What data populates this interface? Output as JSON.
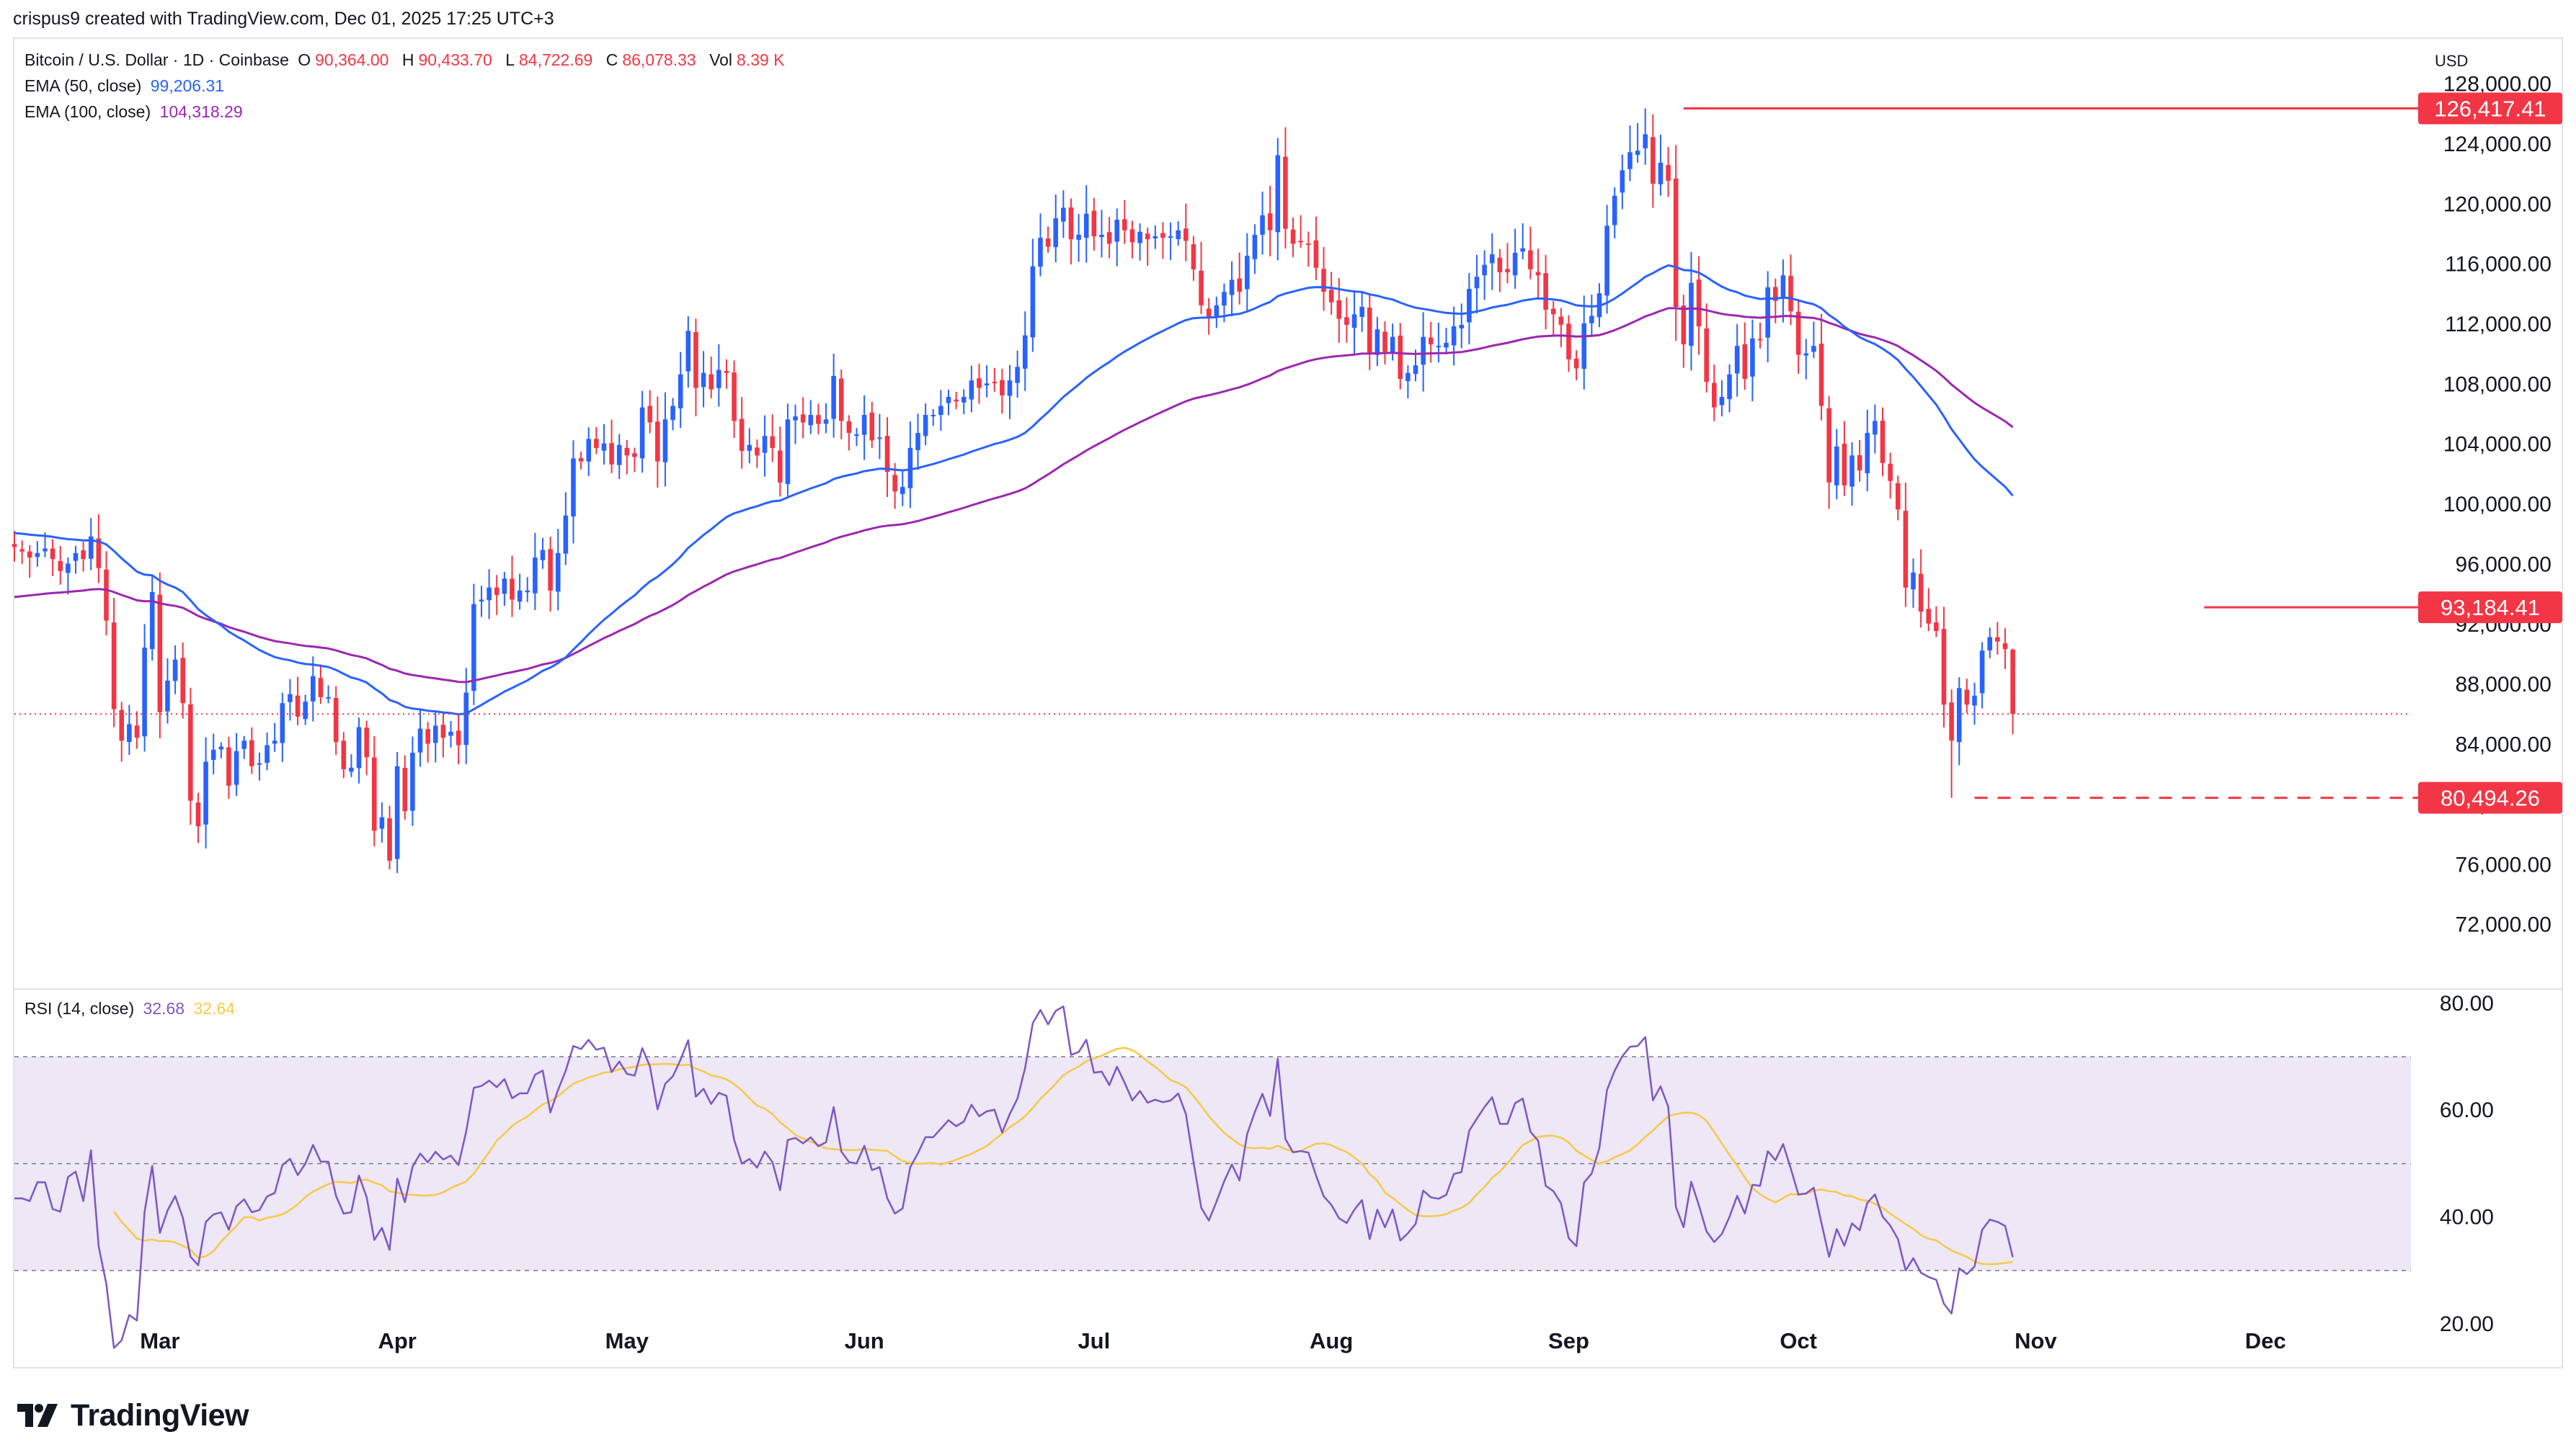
{
  "header": {
    "credit": "crispus9 created with TradingView.com, Dec 01, 2025 17:25 UTC+3"
  },
  "legend": {
    "symbol": "Bitcoin / U.S. Dollar · 1D · Coinbase",
    "open_label": "O",
    "open": "90,364.00",
    "high_label": "H",
    "high": "90,433.70",
    "low_label": "L",
    "low": "84,722.69",
    "close_label": "C",
    "close": "86,078.33",
    "volume_label": "Vol",
    "volume": "8.39 K",
    "ema50_label": "EMA (50, close)",
    "ema50_value": "99,206.31",
    "ema100_label": "EMA (100, close)",
    "ema100_value": "104,318.29",
    "rsi_label": "RSI (14, close)",
    "rsi_value": "32.68",
    "rsi_ma_value": "32.64"
  },
  "currency": "USD",
  "price_tags": [
    "126,417.41",
    "93,184.41",
    "80,494.26"
  ],
  "brand": "TradingView",
  "colors": {
    "bull": "#2962ff",
    "bear": "#f23645",
    "ema50": "#2962ff",
    "ema100": "#9c27b0",
    "rsi": "#7e57c2",
    "rsi_ma": "#f7c948",
    "rsi_band": "#ede7f6",
    "marker": "#f23645"
  },
  "chart_data": [
    {
      "type": "candlestick",
      "title": "Bitcoin / U.S. Dollar · 1D · Coinbase",
      "x_ticks": [
        "Mar",
        "Apr",
        "May",
        "Jun",
        "Jul",
        "Aug",
        "Sep",
        "Oct",
        "Nov",
        "Dec"
      ],
      "y_ticks": [
        72000,
        76000,
        80000,
        84000,
        88000,
        92000,
        96000,
        100000,
        104000,
        108000,
        112000,
        116000,
        120000,
        124000,
        128000
      ],
      "ylim": [
        68000,
        131000
      ],
      "xlim": [
        "2025-02-10",
        "2025-12-20"
      ],
      "close_series": {
        "name": "close",
        "start_date": "2025-02-10",
        "values": [
          97200,
          96900,
          96500,
          96800,
          97100,
          96400,
          95600,
          96100,
          96800,
          96400,
          97900,
          95800,
          92300,
          86400,
          84300,
          85400,
          84500,
          90500,
          94200,
          86200,
          88300,
          89700,
          86800,
          80300,
          78600,
          82900,
          83700,
          83900,
          81300,
          83600,
          84300,
          82600,
          82800,
          84000,
          84300,
          86800,
          87400,
          85900,
          86900,
          88600,
          87200,
          87200,
          84200,
          82400,
          82500,
          85200,
          83200,
          78300,
          79200,
          76300,
          82600,
          79600,
          83500,
          85100,
          84100,
          85300,
          84500,
          84900,
          84000,
          87500,
          93400,
          93700,
          94500,
          94000,
          95100,
          93700,
          94300,
          94300,
          96500,
          97000,
          94300,
          96800,
          99300,
          103100,
          102900,
          104400,
          103800,
          104100,
          102700,
          104000,
          103300,
          103200,
          106500,
          105500,
          102900,
          105700,
          106600,
          108700,
          111600,
          107800,
          108800,
          107700,
          109000,
          108800,
          105600,
          103600,
          104000,
          103300,
          104600,
          103800,
          101500,
          105700,
          105900,
          105500,
          106000,
          105400,
          105700,
          108600,
          105600,
          104800,
          104700,
          106000,
          104300,
          104500,
          102200,
          100900,
          101200,
          103800,
          104800,
          106000,
          106000,
          106600,
          107200,
          106900,
          107200,
          108300,
          107800,
          108100,
          108200,
          107300,
          108300,
          109200,
          111300,
          115900,
          117800,
          117200,
          119100,
          119800,
          117700,
          118000,
          119400,
          117900,
          118000,
          117400,
          119000,
          118300,
          117500,
          118200,
          117700,
          117900,
          117800,
          117900,
          118300,
          117600,
          115700,
          113300,
          112500,
          113300,
          114200,
          115000,
          114200,
          116600,
          118000,
          119300,
          118300,
          123300,
          118400,
          117400,
          117500,
          117400,
          115800,
          114200,
          113500,
          112400,
          112000,
          112700,
          113200,
          110100,
          111700,
          110200,
          111200,
          108400,
          108800,
          109300,
          111200,
          110700,
          110600,
          110800,
          111900,
          112000,
          114400,
          115200,
          116000,
          116700,
          115500,
          115500,
          116800,
          117100,
          115700,
          115300,
          113000,
          112700,
          112000,
          109700,
          109100,
          112100,
          112600,
          114100,
          118600,
          120600,
          122300,
          123500,
          123600,
          124700,
          121400,
          122800,
          121600,
          113200,
          110700,
          114800,
          111900,
          108200,
          106500,
          107200,
          108700,
          110600,
          108400,
          111100,
          111000,
          114500,
          113600,
          115300,
          112900,
          110000,
          110100,
          110600,
          106600,
          101500,
          103900,
          101300,
          103300,
          102300,
          104800,
          105600,
          102800,
          101600,
          99700,
          94500,
          95500,
          92900,
          92100,
          91600,
          86700,
          84300,
          87800,
          86700,
          87300,
          90300,
          91200,
          90900,
          90400,
          86078
        ]
      },
      "emas": [
        {
          "name": "EMA (50, close)",
          "last": 99206.31
        },
        {
          "name": "EMA (100, close)",
          "last": 104318.29
        }
      ],
      "levels": [
        {
          "label": "126,417.41",
          "value": 126417.41,
          "style": "solid",
          "from": "2025-09-16"
        },
        {
          "label": "93,184.41",
          "value": 93184.41,
          "style": "solid",
          "from": "2025-11-23"
        },
        {
          "label": "80,494.26",
          "value": 80494.26,
          "style": "dashed",
          "from": "2025-10-24"
        }
      ],
      "last_price_line": 86078.33
    },
    {
      "type": "line",
      "title": "RSI (14, close)",
      "y_ticks": [
        20,
        40,
        60,
        80
      ],
      "ylim": [
        13,
        82
      ],
      "bands": [
        30,
        50,
        70
      ],
      "series": [
        {
          "name": "RSI",
          "last": 32.68
        },
        {
          "name": "RSI MA",
          "last": 32.64
        }
      ]
    }
  ]
}
